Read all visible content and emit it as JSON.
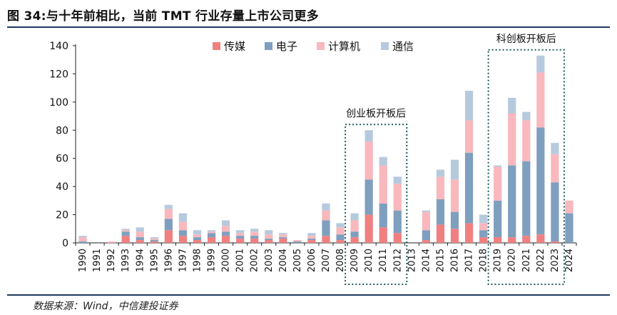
{
  "page": {
    "title": "图 34:与十年前相比，当前 TMT 行业存量上市公司更多",
    "source": "数据来源：Wind，中信建投证券"
  },
  "chart_data": {
    "type": "bar",
    "stacked": true,
    "title": "",
    "xlabel": "",
    "ylabel": "",
    "ylim": [
      0,
      140
    ],
    "yticks": [
      0,
      20,
      40,
      60,
      80,
      100,
      120,
      140
    ],
    "grid": false,
    "legend_position": "top",
    "categories": [
      "1990",
      "1991",
      "1992",
      "1993",
      "1994",
      "1995",
      "1996",
      "1997",
      "1998",
      "1999",
      "2000",
      "2001",
      "2002",
      "2003",
      "2004",
      "2005",
      "2006",
      "2007",
      "2008",
      "2009",
      "2010",
      "2011",
      "2012",
      "2013",
      "2014",
      "2015",
      "2016",
      "2017",
      "2018",
      "2019",
      "2020",
      "2021",
      "2022",
      "2023",
      "2024"
    ],
    "series": [
      {
        "name": "传媒",
        "color": "#f08080",
        "values": [
          0,
          0,
          0,
          5,
          2,
          1,
          9,
          5,
          2,
          4,
          5,
          3,
          3,
          2,
          3,
          0,
          2,
          5,
          2,
          4,
          20,
          11,
          7,
          0,
          2,
          13,
          10,
          14,
          4,
          4,
          4,
          5,
          6,
          1,
          0
        ]
      },
      {
        "name": "电子",
        "color": "#7f9fbf",
        "values": [
          1,
          0,
          0,
          3,
          2,
          1,
          8,
          4,
          2,
          3,
          3,
          2,
          2,
          1,
          1,
          1,
          1,
          11,
          4,
          4,
          25,
          17,
          16,
          0,
          7,
          18,
          12,
          50,
          5,
          26,
          51,
          53,
          76,
          42,
          21
        ]
      },
      {
        "name": "计算机",
        "color": "#f9b8bd",
        "values": [
          3,
          0,
          1,
          1,
          4,
          1,
          7,
          6,
          2,
          1,
          4,
          2,
          3,
          3,
          2,
          1,
          2,
          7,
          5,
          8,
          27,
          27,
          19,
          0,
          13,
          16,
          23,
          23,
          5,
          24,
          37,
          29,
          39,
          20,
          9
        ]
      },
      {
        "name": "通信",
        "color": "#b6cade",
        "values": [
          1,
          0,
          0,
          1,
          3,
          1,
          3,
          6,
          3,
          1,
          4,
          2,
          2,
          3,
          1,
          0,
          2,
          5,
          3,
          5,
          8,
          6,
          5,
          0,
          1,
          5,
          14,
          21,
          6,
          1,
          11,
          6,
          12,
          8,
          0
        ]
      }
    ],
    "annotations": [
      {
        "text": "创业板开板后",
        "from": "2009",
        "to": "2012"
      },
      {
        "text": "科创板开板后",
        "from": "2019",
        "to": "2023"
      }
    ]
  }
}
